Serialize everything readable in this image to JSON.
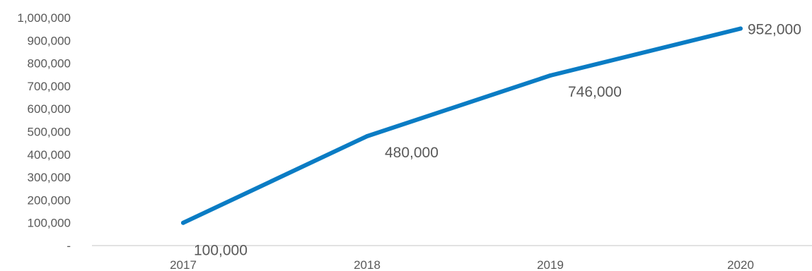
{
  "chart_data": {
    "type": "line",
    "categories": [
      "2017",
      "2018",
      "2019",
      "2020"
    ],
    "series": [
      {
        "values": [
          100000,
          480000,
          746000,
          952000
        ],
        "color": "#0A7CC4"
      }
    ],
    "data_labels": [
      "100,000",
      "480,000",
      "746,000",
      "952,000"
    ],
    "y_tick_labels": [
      "-",
      "100,000",
      "200,000",
      "300,000",
      "400,000",
      "500,000",
      "600,000",
      "700,000",
      "800,000",
      "900,000",
      "1,000,000"
    ],
    "y_ticks": [
      0,
      100000,
      200000,
      300000,
      400000,
      500000,
      600000,
      700000,
      800000,
      900000,
      1000000
    ],
    "ylim": [
      0,
      1000000
    ],
    "grid": false,
    "legend": "none",
    "axis_color": "#D9D9D9",
    "text_color": "#595959"
  }
}
